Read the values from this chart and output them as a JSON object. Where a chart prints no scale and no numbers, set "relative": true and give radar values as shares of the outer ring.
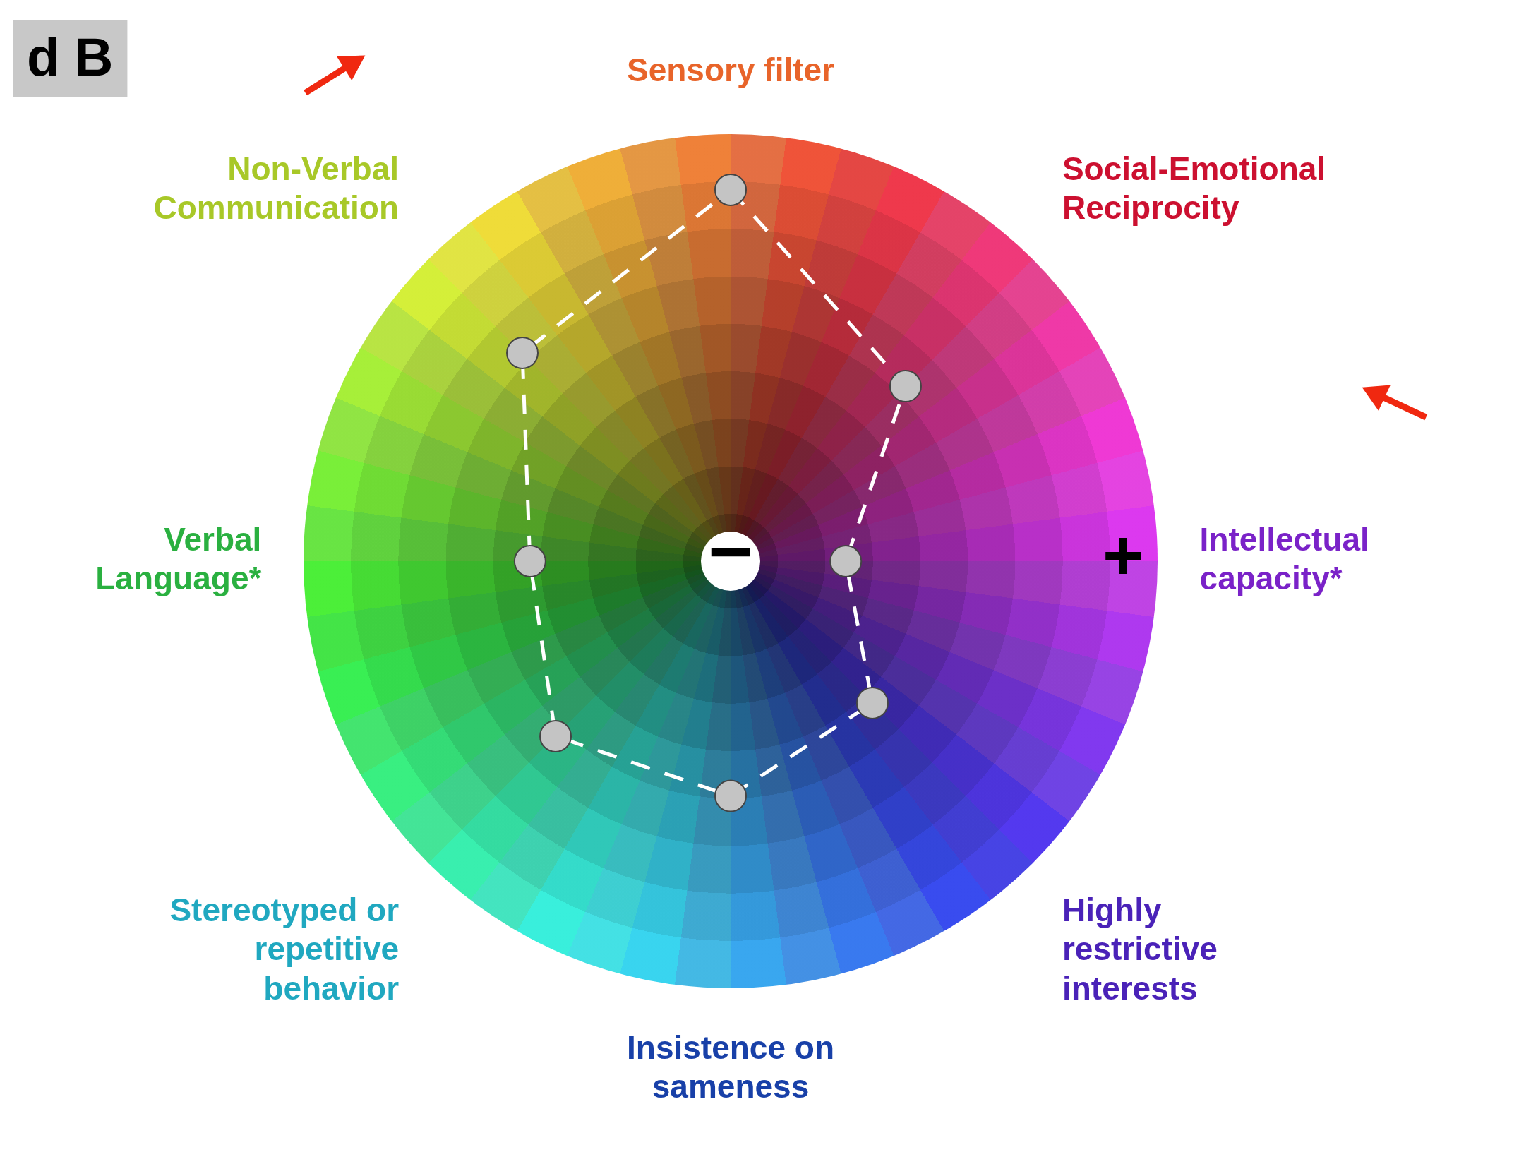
{
  "chart_data": {
    "type": "radar",
    "relative": true,
    "categories": [
      "Sensory filter",
      "Social-Emotional Reciprocity",
      "Intellectual capacity*",
      "Highly restrictive interests",
      "Insistence on sameness",
      "Stereotyped or repetitive behavior",
      "Verbal Language*",
      "Non-Verbal Communication"
    ],
    "colors": [
      "#e8642a",
      "#cc1030",
      "#7a22c8",
      "#4a22b8",
      "#1840a8",
      "#20a8c0",
      "#2ab040",
      "#a8c828"
    ],
    "series": [
      {
        "color": "#ffffff",
        "values": [
          0.87,
          0.58,
          0.27,
          0.47,
          0.55,
          0.58,
          0.47,
          0.69
        ]
      }
    ],
    "marker": "circle",
    "line_style": "dashed",
    "grid": false,
    "legend": false,
    "annotations": [
      "d B",
      "−",
      "+"
    ]
  }
}
